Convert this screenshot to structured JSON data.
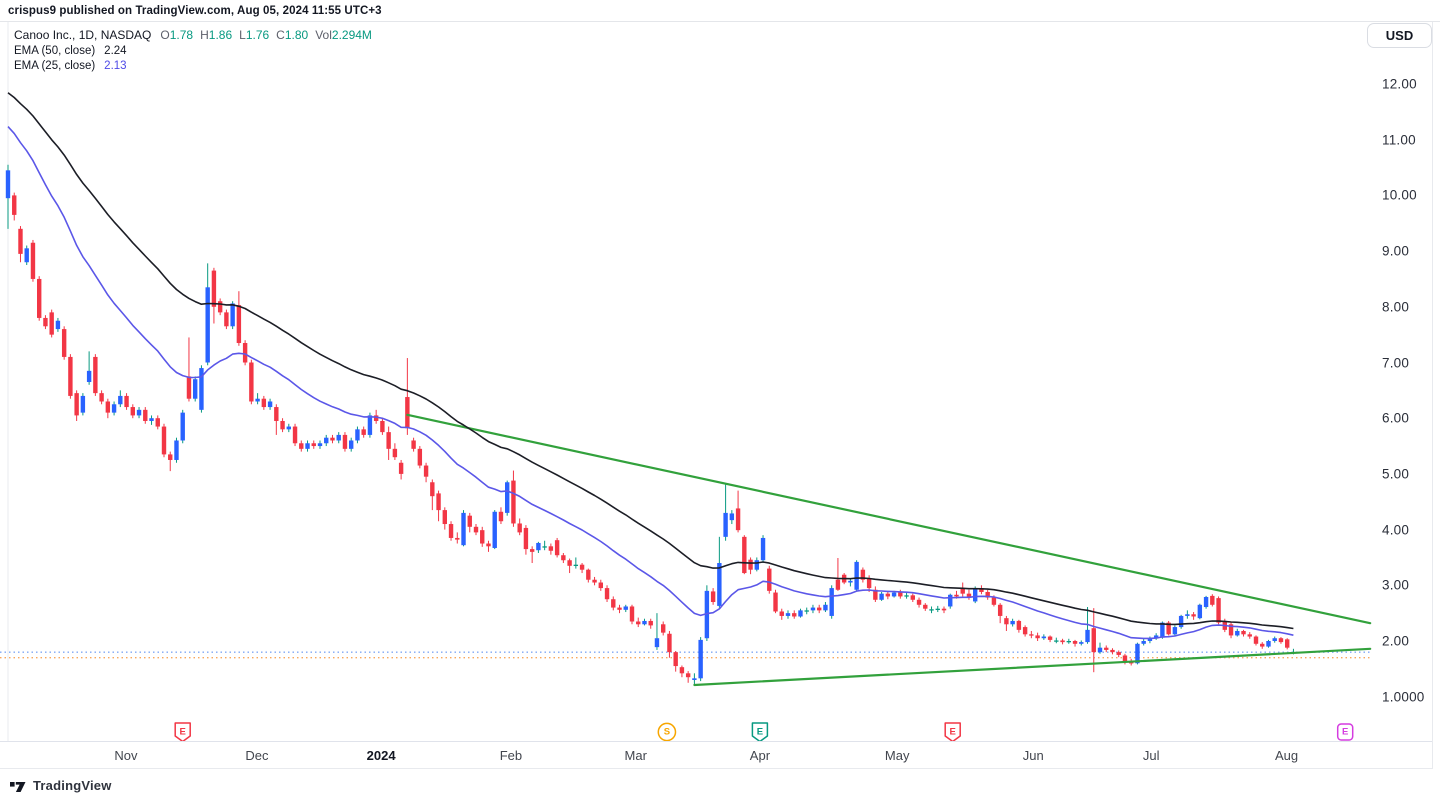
{
  "header": {
    "published_line": "crispus9 published on TradingView.com, Aug 05, 2024 11:55 UTC+3"
  },
  "legend": {
    "symbol": "Canoo Inc., 1D, NASDAQ",
    "ohlc": [
      {
        "label": "O",
        "value": "1.78"
      },
      {
        "label": "H",
        "value": "1.86"
      },
      {
        "label": "L",
        "value": "1.76"
      },
      {
        "label": "C",
        "value": "1.80"
      },
      {
        "label": "Vol",
        "value": "2.294M"
      }
    ],
    "indicators": [
      {
        "label": "EMA (50, close)",
        "value": "2.24"
      },
      {
        "label": "EMA (25, close)",
        "value": "2.13"
      }
    ]
  },
  "axes": {
    "currency_button": "USD",
    "price_ticks": [
      {
        "label": "12.00",
        "price": 12
      },
      {
        "label": "11.00",
        "price": 11
      },
      {
        "label": "10.00",
        "price": 10
      },
      {
        "label": "9.00",
        "price": 9
      },
      {
        "label": "8.00",
        "price": 8
      },
      {
        "label": "7.00",
        "price": 7
      },
      {
        "label": "6.00",
        "price": 6
      },
      {
        "label": "5.00",
        "price": 5
      },
      {
        "label": "4.00",
        "price": 4
      },
      {
        "label": "3.00",
        "price": 3
      },
      {
        "label": "2.00",
        "price": 2
      },
      {
        "label": "1.0000",
        "price": 1
      }
    ],
    "time_ticks": [
      {
        "label": "Nov",
        "index": 18.9
      },
      {
        "label": "Dec",
        "index": 39.9
      },
      {
        "label": "2024",
        "index": 59.8,
        "bold": true
      },
      {
        "label": "Feb",
        "index": 80.6
      },
      {
        "label": "Mar",
        "index": 100.6
      },
      {
        "label": "Apr",
        "index": 120.5
      },
      {
        "label": "May",
        "index": 142.5
      },
      {
        "label": "Jun",
        "index": 164.3
      },
      {
        "label": "Jul",
        "index": 183.2
      },
      {
        "label": "Aug",
        "index": 204.9
      }
    ]
  },
  "events": [
    {
      "glyph": "E",
      "shape": "flag",
      "color": "#f23645",
      "index": 28
    },
    {
      "glyph": "S",
      "shape": "circle",
      "color": "#f7a600",
      "index": 105.6
    },
    {
      "glyph": "E",
      "shape": "flag",
      "color": "#089981",
      "index": 120.5
    },
    {
      "glyph": "E",
      "shape": "flag",
      "color": "#f23645",
      "index": 151.4
    },
    {
      "glyph": "E",
      "shape": "square",
      "color": "#d53ce0",
      "index": 214.3
    }
  ],
  "footer": {
    "brand": "TradingView"
  },
  "colors": {
    "up_body": "#2962ff",
    "up_wick": "#089981",
    "down": "#f23645",
    "ema50": "#1c1e26",
    "ema25": "#5b57e8",
    "trendline": "#32a13c",
    "hline_blue": "#7fa7f5",
    "hline_orange": "#f8a75c",
    "vline": "#e9ebef"
  },
  "chart_data": {
    "type": "candlestick",
    "title": "Canoo Inc., 1D, NASDAQ",
    "unit": "USD",
    "ylim": [
      0.2,
      13.1
    ],
    "grid": false,
    "legend_position": "top-left",
    "candles": [
      [
        9.95,
        10.55,
        9.4,
        10.45
      ],
      [
        10.0,
        10.05,
        9.55,
        9.65
      ],
      [
        9.4,
        9.45,
        8.8,
        8.95
      ],
      [
        8.8,
        9.1,
        8.75,
        9.05
      ],
      [
        9.15,
        9.2,
        8.45,
        8.5
      ],
      [
        8.5,
        8.55,
        7.75,
        7.8
      ],
      [
        7.8,
        7.85,
        7.6,
        7.65
      ],
      [
        7.9,
        7.95,
        7.45,
        7.5
      ],
      [
        7.6,
        7.8,
        7.55,
        7.75
      ],
      [
        7.6,
        7.65,
        7.05,
        7.1
      ],
      [
        7.1,
        7.15,
        6.35,
        6.4
      ],
      [
        6.45,
        6.5,
        5.95,
        6.05
      ],
      [
        6.1,
        6.45,
        6.05,
        6.4
      ],
      [
        6.65,
        7.2,
        6.6,
        6.85
      ],
      [
        7.1,
        7.15,
        6.4,
        6.45
      ],
      [
        6.45,
        6.5,
        6.25,
        6.3
      ],
      [
        6.3,
        6.35,
        6.0,
        6.1
      ],
      [
        6.1,
        6.3,
        6.05,
        6.25
      ],
      [
        6.25,
        6.5,
        6.2,
        6.4
      ],
      [
        6.4,
        6.45,
        6.15,
        6.2
      ],
      [
        6.2,
        6.25,
        6.0,
        6.05
      ],
      [
        6.05,
        6.2,
        6.0,
        6.15
      ],
      [
        6.15,
        6.2,
        5.9,
        5.95
      ],
      [
        5.95,
        6.05,
        5.88,
        6.0
      ],
      [
        6.0,
        6.05,
        5.8,
        5.85
      ],
      [
        5.85,
        5.9,
        5.3,
        5.35
      ],
      [
        5.35,
        5.4,
        5.05,
        5.25
      ],
      [
        5.25,
        5.65,
        5.2,
        5.6
      ],
      [
        5.6,
        6.15,
        5.55,
        6.1
      ],
      [
        6.75,
        7.45,
        6.3,
        6.35
      ],
      [
        6.35,
        6.75,
        6.3,
        6.7
      ],
      [
        6.15,
        6.95,
        6.1,
        6.9
      ],
      [
        7.0,
        8.78,
        6.95,
        8.35
      ],
      [
        8.65,
        8.7,
        7.7,
        8.0
      ],
      [
        8.1,
        8.15,
        7.85,
        7.9
      ],
      [
        7.9,
        7.95,
        7.6,
        7.65
      ],
      [
        7.65,
        8.1,
        7.6,
        8.06
      ],
      [
        8.03,
        8.28,
        7.3,
        7.35
      ],
      [
        7.35,
        7.4,
        6.95,
        7.0
      ],
      [
        7.0,
        7.05,
        6.25,
        6.3
      ],
      [
        6.3,
        6.45,
        6.25,
        6.35
      ],
      [
        6.35,
        6.4,
        6.15,
        6.2
      ],
      [
        6.2,
        6.35,
        6.15,
        6.3
      ],
      [
        6.2,
        6.25,
        5.7,
        5.95
      ],
      [
        5.95,
        6.0,
        5.75,
        5.8
      ],
      [
        5.8,
        5.9,
        5.75,
        5.85
      ],
      [
        5.85,
        5.9,
        5.5,
        5.55
      ],
      [
        5.55,
        5.6,
        5.4,
        5.45
      ],
      [
        5.45,
        5.6,
        5.4,
        5.55
      ],
      [
        5.55,
        5.6,
        5.45,
        5.5
      ],
      [
        5.5,
        5.6,
        5.45,
        5.55
      ],
      [
        5.55,
        5.7,
        5.5,
        5.65
      ],
      [
        5.65,
        5.7,
        5.55,
        5.6
      ],
      [
        5.6,
        5.75,
        5.55,
        5.7
      ],
      [
        5.7,
        5.75,
        5.4,
        5.45
      ],
      [
        5.45,
        5.65,
        5.4,
        5.6
      ],
      [
        5.6,
        5.85,
        5.55,
        5.8
      ],
      [
        5.8,
        5.85,
        5.65,
        5.7
      ],
      [
        5.7,
        6.1,
        5.65,
        6.05
      ],
      [
        6.05,
        6.15,
        5.9,
        5.95
      ],
      [
        5.95,
        6.0,
        5.7,
        5.75
      ],
      [
        5.75,
        5.85,
        5.25,
        5.45
      ],
      [
        5.45,
        5.55,
        5.25,
        5.3
      ],
      [
        5.2,
        5.25,
        4.9,
        5.0
      ],
      [
        6.38,
        7.08,
        5.7,
        5.82
      ],
      [
        5.6,
        5.65,
        5.4,
        5.45
      ],
      [
        5.45,
        5.5,
        5.1,
        5.15
      ],
      [
        5.15,
        5.2,
        4.85,
        4.95
      ],
      [
        4.85,
        4.9,
        4.35,
        4.6
      ],
      [
        4.65,
        4.7,
        4.15,
        4.35
      ],
      [
        4.35,
        4.4,
        4.0,
        4.1
      ],
      [
        4.1,
        4.15,
        3.8,
        3.85
      ],
      [
        3.85,
        3.95,
        3.75,
        3.82
      ],
      [
        3.72,
        4.35,
        3.7,
        4.3
      ],
      [
        4.25,
        4.3,
        3.95,
        4.05
      ],
      [
        4.05,
        4.1,
        3.9,
        3.95
      ],
      [
        3.99,
        4.05,
        3.69,
        3.75
      ],
      [
        3.75,
        3.8,
        3.6,
        3.7
      ],
      [
        3.67,
        4.35,
        3.65,
        4.32
      ],
      [
        4.32,
        4.4,
        4.1,
        4.15
      ],
      [
        4.3,
        4.88,
        4.25,
        4.85
      ],
      [
        4.88,
        5.06,
        4.05,
        4.11
      ],
      [
        4.11,
        4.2,
        3.9,
        3.95
      ],
      [
        4.03,
        4.08,
        3.55,
        3.65
      ],
      [
        3.65,
        3.7,
        3.4,
        3.6
      ],
      [
        3.63,
        3.78,
        3.58,
        3.76
      ],
      [
        3.69,
        3.8,
        3.63,
        3.7
      ],
      [
        3.7,
        3.75,
        3.55,
        3.62
      ],
      [
        3.81,
        3.85,
        3.5,
        3.54
      ],
      [
        3.54,
        3.58,
        3.4,
        3.45
      ],
      [
        3.45,
        3.48,
        3.22,
        3.35
      ],
      [
        3.35,
        3.5,
        3.3,
        3.37
      ],
      [
        3.37,
        3.4,
        3.22,
        3.28
      ],
      [
        3.28,
        3.3,
        3.05,
        3.1
      ],
      [
        3.1,
        3.15,
        3.0,
        3.05
      ],
      [
        3.05,
        3.1,
        2.9,
        2.95
      ],
      [
        2.95,
        3.0,
        2.7,
        2.75
      ],
      [
        2.75,
        2.8,
        2.55,
        2.6
      ],
      [
        2.6,
        2.65,
        2.5,
        2.56
      ],
      [
        2.56,
        2.65,
        2.52,
        2.62
      ],
      [
        2.62,
        2.65,
        2.3,
        2.35
      ],
      [
        2.35,
        2.42,
        2.25,
        2.3
      ],
      [
        2.3,
        2.4,
        2.28,
        2.36
      ],
      [
        2.36,
        2.4,
        2.22,
        2.28
      ],
      [
        1.89,
        2.5,
        1.84,
        2.05
      ],
      [
        2.3,
        2.35,
        2.1,
        2.15
      ],
      [
        2.13,
        2.18,
        1.7,
        1.8
      ],
      [
        1.8,
        1.82,
        1.45,
        1.55
      ],
      [
        1.53,
        1.56,
        1.35,
        1.42
      ],
      [
        1.42,
        1.46,
        1.25,
        1.35
      ],
      [
        1.3,
        1.42,
        1.21,
        1.33
      ],
      [
        1.33,
        2.07,
        1.28,
        2.02
      ],
      [
        2.05,
        3.0,
        2.0,
        2.9
      ],
      [
        2.89,
        2.95,
        2.65,
        2.7
      ],
      [
        2.63,
        3.87,
        2.6,
        3.4
      ],
      [
        3.87,
        4.82,
        3.8,
        4.3
      ],
      [
        4.17,
        4.35,
        4.1,
        4.29
      ],
      [
        4.38,
        4.7,
        3.95,
        3.99
      ],
      [
        3.87,
        3.9,
        3.2,
        3.22
      ],
      [
        3.46,
        3.5,
        3.2,
        3.28
      ],
      [
        3.28,
        3.5,
        3.25,
        3.45
      ],
      [
        3.45,
        3.9,
        3.4,
        3.85
      ],
      [
        3.3,
        3.35,
        2.85,
        2.9
      ],
      [
        2.87,
        2.92,
        2.5,
        2.53
      ],
      [
        2.53,
        2.58,
        2.38,
        2.45
      ],
      [
        2.45,
        2.55,
        2.4,
        2.5
      ],
      [
        2.5,
        2.55,
        2.4,
        2.44
      ],
      [
        2.44,
        2.58,
        2.42,
        2.55
      ],
      [
        2.54,
        2.6,
        2.48,
        2.55
      ],
      [
        2.55,
        2.65,
        2.5,
        2.6
      ],
      [
        2.6,
        2.65,
        2.5,
        2.55
      ],
      [
        2.55,
        2.7,
        2.52,
        2.65
      ],
      [
        2.45,
        3.0,
        2.4,
        2.95
      ],
      [
        3.1,
        3.49,
        2.9,
        2.92
      ],
      [
        3.19,
        3.22,
        3.02,
        3.05
      ],
      [
        3.05,
        3.12,
        2.98,
        3.08
      ],
      [
        2.92,
        3.45,
        2.9,
        3.42
      ],
      [
        3.28,
        3.32,
        3.05,
        3.1
      ],
      [
        3.12,
        3.18,
        2.88,
        2.95
      ],
      [
        2.92,
        2.98,
        2.7,
        2.74
      ],
      [
        2.74,
        2.88,
        2.72,
        2.85
      ],
      [
        2.85,
        2.9,
        2.75,
        2.8
      ],
      [
        2.8,
        2.9,
        2.78,
        2.87
      ],
      [
        2.87,
        2.92,
        2.76,
        2.8
      ],
      [
        2.8,
        2.88,
        2.76,
        2.82
      ],
      [
        2.82,
        2.85,
        2.7,
        2.74
      ],
      [
        2.74,
        2.78,
        2.6,
        2.65
      ],
      [
        2.65,
        2.68,
        2.54,
        2.58
      ],
      [
        2.56,
        2.62,
        2.5,
        2.57
      ],
      [
        2.57,
        2.63,
        2.52,
        2.58
      ],
      [
        2.58,
        2.62,
        2.5,
        2.55
      ],
      [
        2.62,
        2.85,
        2.58,
        2.83
      ],
      [
        2.83,
        2.9,
        2.76,
        2.8
      ],
      [
        2.95,
        3.05,
        2.8,
        2.85
      ],
      [
        2.85,
        2.92,
        2.74,
        2.78
      ],
      [
        2.71,
        2.98,
        2.68,
        2.95
      ],
      [
        2.95,
        3.0,
        2.84,
        2.88
      ],
      [
        2.88,
        2.92,
        2.74,
        2.78
      ],
      [
        2.78,
        2.82,
        2.62,
        2.65
      ],
      [
        2.65,
        2.68,
        2.32,
        2.45
      ],
      [
        2.41,
        2.45,
        2.18,
        2.3
      ],
      [
        2.3,
        2.4,
        2.26,
        2.36
      ],
      [
        2.36,
        2.38,
        2.15,
        2.2
      ],
      [
        2.25,
        2.28,
        2.08,
        2.12
      ],
      [
        2.12,
        2.18,
        2.05,
        2.1
      ],
      [
        2.1,
        2.15,
        2.0,
        2.05
      ],
      [
        2.05,
        2.12,
        2.02,
        2.08
      ],
      [
        2.08,
        2.1,
        1.98,
        2.02
      ],
      [
        2.0,
        2.06,
        1.96,
        2.01
      ],
      [
        2.01,
        2.04,
        1.94,
        1.98
      ],
      [
        1.98,
        2.04,
        1.95,
        2.0
      ],
      [
        2.0,
        2.02,
        1.9,
        1.95
      ],
      [
        1.95,
        2.01,
        1.92,
        1.98
      ],
      [
        1.98,
        2.61,
        1.95,
        2.2
      ],
      [
        2.23,
        2.59,
        1.44,
        1.8
      ],
      [
        1.8,
        1.97,
        1.77,
        1.88
      ],
      [
        1.88,
        1.92,
        1.8,
        1.84
      ],
      [
        1.84,
        1.87,
        1.76,
        1.8
      ],
      [
        1.8,
        1.83,
        1.71,
        1.75
      ],
      [
        1.74,
        1.77,
        1.58,
        1.62
      ],
      [
        1.62,
        1.68,
        1.56,
        1.6
      ],
      [
        1.6,
        1.97,
        1.58,
        1.95
      ],
      [
        1.95,
        2.04,
        1.92,
        2.0
      ],
      [
        2.0,
        2.08,
        1.96,
        2.05
      ],
      [
        2.05,
        2.14,
        2.02,
        2.1
      ],
      [
        2.06,
        2.35,
        2.04,
        2.33
      ],
      [
        2.33,
        2.36,
        2.1,
        2.12
      ],
      [
        2.12,
        2.28,
        2.1,
        2.25
      ],
      [
        2.25,
        2.47,
        2.22,
        2.45
      ],
      [
        2.45,
        2.55,
        2.4,
        2.48
      ],
      [
        2.48,
        2.52,
        2.38,
        2.44
      ],
      [
        2.41,
        2.67,
        2.39,
        2.65
      ],
      [
        2.61,
        2.81,
        2.58,
        2.79
      ],
      [
        2.81,
        2.84,
        2.62,
        2.65
      ],
      [
        2.77,
        2.8,
        2.3,
        2.33
      ],
      [
        2.36,
        2.4,
        2.16,
        2.2
      ],
      [
        2.3,
        2.34,
        2.05,
        2.1
      ],
      [
        2.1,
        2.22,
        2.08,
        2.18
      ],
      [
        2.18,
        2.2,
        2.08,
        2.12
      ],
      [
        2.12,
        2.16,
        2.04,
        2.08
      ],
      [
        2.08,
        2.1,
        1.92,
        1.95
      ],
      [
        1.95,
        1.98,
        1.86,
        1.9
      ],
      [
        1.9,
        2.02,
        1.88,
        2.0
      ],
      [
        2.0,
        2.08,
        1.97,
        2.05
      ],
      [
        2.05,
        2.07,
        1.95,
        1.98
      ],
      [
        2.03,
        2.05,
        1.85,
        1.88
      ],
      [
        1.78,
        1.86,
        1.76,
        1.8
      ]
    ],
    "emas": [
      {
        "period": 50,
        "seed": 11.9,
        "last_value": "2.24",
        "color": "#1c1e26"
      },
      {
        "period": 25,
        "seed": 11.3,
        "last_value": "2.13",
        "color": "#5b57e8"
      }
    ],
    "trendlines": [
      {
        "from_index": 64,
        "from_price": 6.06,
        "to_index": 218.3,
        "to_price": 2.32
      },
      {
        "from_index": 110,
        "from_price": 1.21,
        "to_index": 218.3,
        "to_price": 1.86
      }
    ],
    "hlines": [
      {
        "price": 1.8,
        "style": "dotted",
        "color": "#7fa7f5"
      },
      {
        "price": 1.7,
        "style": "dotted",
        "color": "#f8a75c"
      }
    ],
    "vline_index": 0
  }
}
